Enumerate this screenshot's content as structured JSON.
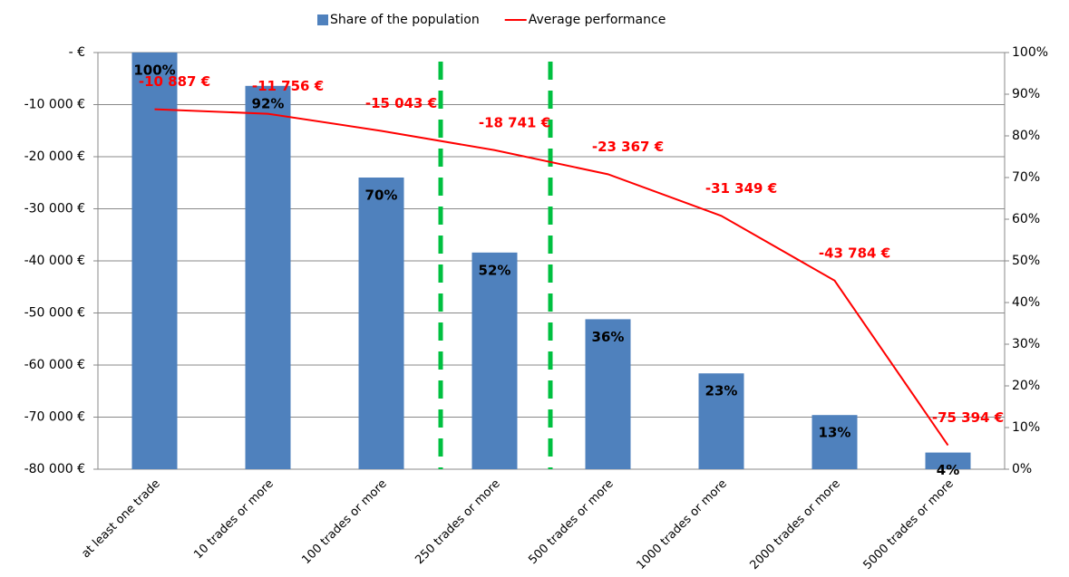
{
  "chart_data": {
    "type": "bar-line",
    "categories": [
      "at least one trade",
      "10 trades or more",
      "100 trades or more",
      "250 trades or more",
      "500 trades or more",
      "1000 trades or more",
      "2000 trades or more",
      "5000 trades or more"
    ],
    "series": [
      {
        "name": "Share of the population",
        "type": "bar",
        "axis": "y2",
        "color": "#4f81bd",
        "values": [
          100,
          92,
          70,
          52,
          36,
          23,
          13,
          4
        ],
        "value_labels": [
          "100%",
          "92%",
          "70%",
          "52%",
          "36%",
          "23%",
          "13%",
          "4%"
        ]
      },
      {
        "name": "Average performance",
        "type": "line",
        "color": "#ff0000",
        "values": [
          -10887,
          -11756,
          -15043,
          -18741,
          -23367,
          -31349,
          -43784,
          -75394
        ],
        "value_labels": [
          "-10 887 €",
          "-11 756 €",
          "-15 043 €",
          "-18 741 €",
          "-23 367 €",
          "-31 349 €",
          "-43 784 €",
          "-75 394 €"
        ]
      }
    ],
    "ylim": [
      -80000,
      0
    ],
    "yticks": [
      {
        "value": -80000,
        "label": "-80 000 €"
      },
      {
        "value": -70000,
        "label": "-70 000 €"
      },
      {
        "value": -60000,
        "label": "-60 000 €"
      },
      {
        "value": -50000,
        "label": "-50 000 €"
      },
      {
        "value": -40000,
        "label": "-40 000 €"
      },
      {
        "value": -30000,
        "label": "-30 000 €"
      },
      {
        "value": -20000,
        "label": "-20 000 €"
      },
      {
        "value": -10000,
        "label": "-10 000 €"
      },
      {
        "value": 0,
        "label": "-  €"
      }
    ],
    "y2lim": [
      0,
      100
    ],
    "y2ticks": [
      {
        "value": 0,
        "label": "0%"
      },
      {
        "value": 10,
        "label": "10%"
      },
      {
        "value": 20,
        "label": "20%"
      },
      {
        "value": 30,
        "label": "30%"
      },
      {
        "value": 40,
        "label": "40%"
      },
      {
        "value": 50,
        "label": "50%"
      },
      {
        "value": 60,
        "label": "60%"
      },
      {
        "value": 70,
        "label": "70%"
      },
      {
        "value": 80,
        "label": "80%"
      },
      {
        "value": 90,
        "label": "90%"
      },
      {
        "value": 100,
        "label": "100%"
      }
    ],
    "grid": true,
    "legend": "top"
  }
}
